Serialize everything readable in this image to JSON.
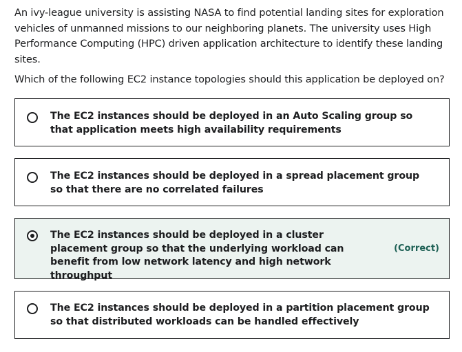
{
  "question": {
    "stem": "An ivy-league university is assisting NASA to find potential landing sites for exploration vehicles of unmanned missions to our neighboring planets. The university uses High Performance Computing (HPC) driven application architecture to identify these landing sites.",
    "prompt": "Which of the following EC2 instance topologies should this application be deployed on?"
  },
  "options": [
    {
      "label": "The EC2 instances should be deployed in an Auto Scaling group so that application meets high availability requirements",
      "selected": false
    },
    {
      "label": "The EC2 instances should be deployed in a spread placement group so that there are no correlated failures",
      "selected": false
    },
    {
      "label": "The EC2 instances should be deployed in a cluster placement group so that the underlying workload can benefit from low network latency and high network throughput",
      "selected": true,
      "tag": "(Correct)"
    },
    {
      "label": "The EC2 instances should be deployed in a partition placement group so that distributed workloads can be handled effectively",
      "selected": false
    }
  ],
  "colors": {
    "text": "#1c1d1f",
    "selected_background": "#ecf3f0",
    "correct_tag": "#1e6055"
  }
}
